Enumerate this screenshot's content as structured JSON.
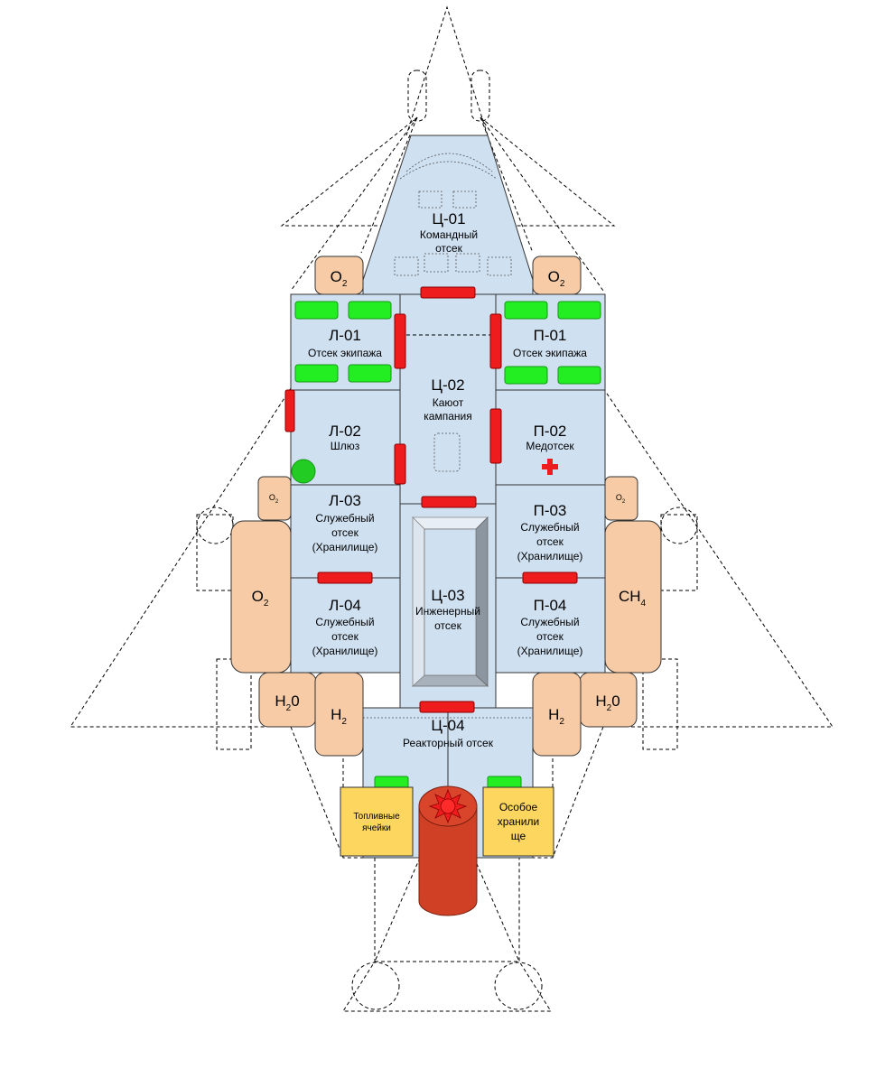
{
  "rooms": {
    "c01": {
      "code": "Ц-01",
      "name": [
        "Командный",
        "отсек"
      ]
    },
    "l01": {
      "code": "Л-01",
      "name": [
        "Отсек экипажа"
      ]
    },
    "c02": {
      "code": "Ц-02",
      "name": [
        "Каюот",
        "кампания"
      ]
    },
    "p01": {
      "code": "П-01",
      "name": [
        "Отсек экипажа"
      ]
    },
    "l02": {
      "code": "Л-02",
      "name": [
        "Шлюз"
      ]
    },
    "p02": {
      "code": "П-02",
      "name": [
        "Медотсек"
      ]
    },
    "l03": {
      "code": "Л-03",
      "name": [
        "Служебный",
        "отсек",
        "(Хранилище)"
      ]
    },
    "p03": {
      "code": "П-03",
      "name": [
        "Служебный",
        "отсек",
        "(Хранилище)"
      ]
    },
    "c03": {
      "code": "Ц-03",
      "name": [
        "Инженерный",
        "отсек"
      ]
    },
    "l04": {
      "code": "Л-04",
      "name": [
        "Служебный",
        "отсек",
        "(Хранилище)"
      ]
    },
    "p04": {
      "code": "П-04",
      "name": [
        "Служебный",
        "отсек",
        "(Хранилище)"
      ]
    },
    "c04": {
      "code": "Ц-04",
      "name": [
        "Реакторный отсек"
      ]
    }
  },
  "tanks": {
    "o2_top_left": {
      "base": "O",
      "sub": "2"
    },
    "o2_top_right": {
      "base": "O",
      "sub": "2"
    },
    "o2_small_left": {
      "base": "O",
      "sub": "2"
    },
    "o2_small_right": {
      "base": "O",
      "sub": "2"
    },
    "o2_big_left": {
      "base": "O",
      "sub": "2"
    },
    "ch4_big_right": {
      "base": "CH",
      "sub": "4"
    },
    "h2o_left": {
      "base": "H",
      "sub": "2",
      "tail": "0"
    },
    "h2o_right": {
      "base": "H",
      "sub": "2",
      "tail": "0"
    },
    "h2_left": {
      "base": "H",
      "sub": "2"
    },
    "h2_right": {
      "base": "H",
      "sub": "2"
    }
  },
  "modules": {
    "fuel_cells": [
      "Топливные",
      "ячейки"
    ],
    "special_storage": [
      "Особое",
      "хранили",
      "ще"
    ]
  },
  "colors": {
    "room_fill": "#cfe0f1",
    "tank_fill": "#f6cba5",
    "door": "#ee1c1c",
    "bunk": "#22ee22",
    "module_fill": "#fcd65e",
    "reactor": "#cf4024"
  },
  "icons": [
    "medical-cross-icon",
    "airlock-hatch-icon",
    "reactor-core-icon"
  ]
}
